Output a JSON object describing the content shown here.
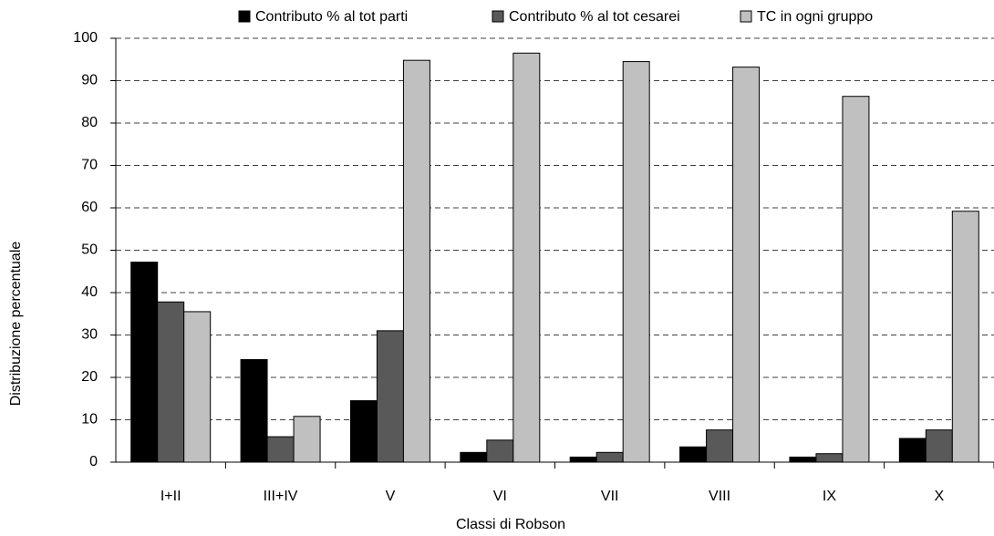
{
  "chart_data": {
    "type": "bar",
    "x_label": "Classi di Robson",
    "y_label": "Distribuzione percentuale",
    "categories": [
      "I+II",
      "III+IV",
      "V",
      "VI",
      "VII",
      "VIII",
      "IX",
      "X"
    ],
    "series": [
      {
        "name": "Contributo % al tot parti",
        "color": "#000000",
        "values": [
          47.2,
          24.2,
          14.5,
          2.3,
          1.2,
          3.6,
          1.2,
          5.6
        ]
      },
      {
        "name": "Contributo % al tot cesarei",
        "color": "#595959",
        "values": [
          37.8,
          6.0,
          31.0,
          5.2,
          2.3,
          7.6,
          2.0,
          7.6
        ]
      },
      {
        "name": "TC in ogni gruppo",
        "color": "#c0c0c0",
        "values": [
          35.5,
          10.8,
          94.8,
          96.5,
          94.5,
          93.2,
          86.3,
          59.2
        ]
      }
    ],
    "ylim": [
      0,
      100
    ],
    "yticks": [
      0,
      10,
      20,
      30,
      40,
      50,
      60,
      70,
      80,
      90,
      100
    ],
    "grid": true,
    "legend": "top"
  }
}
